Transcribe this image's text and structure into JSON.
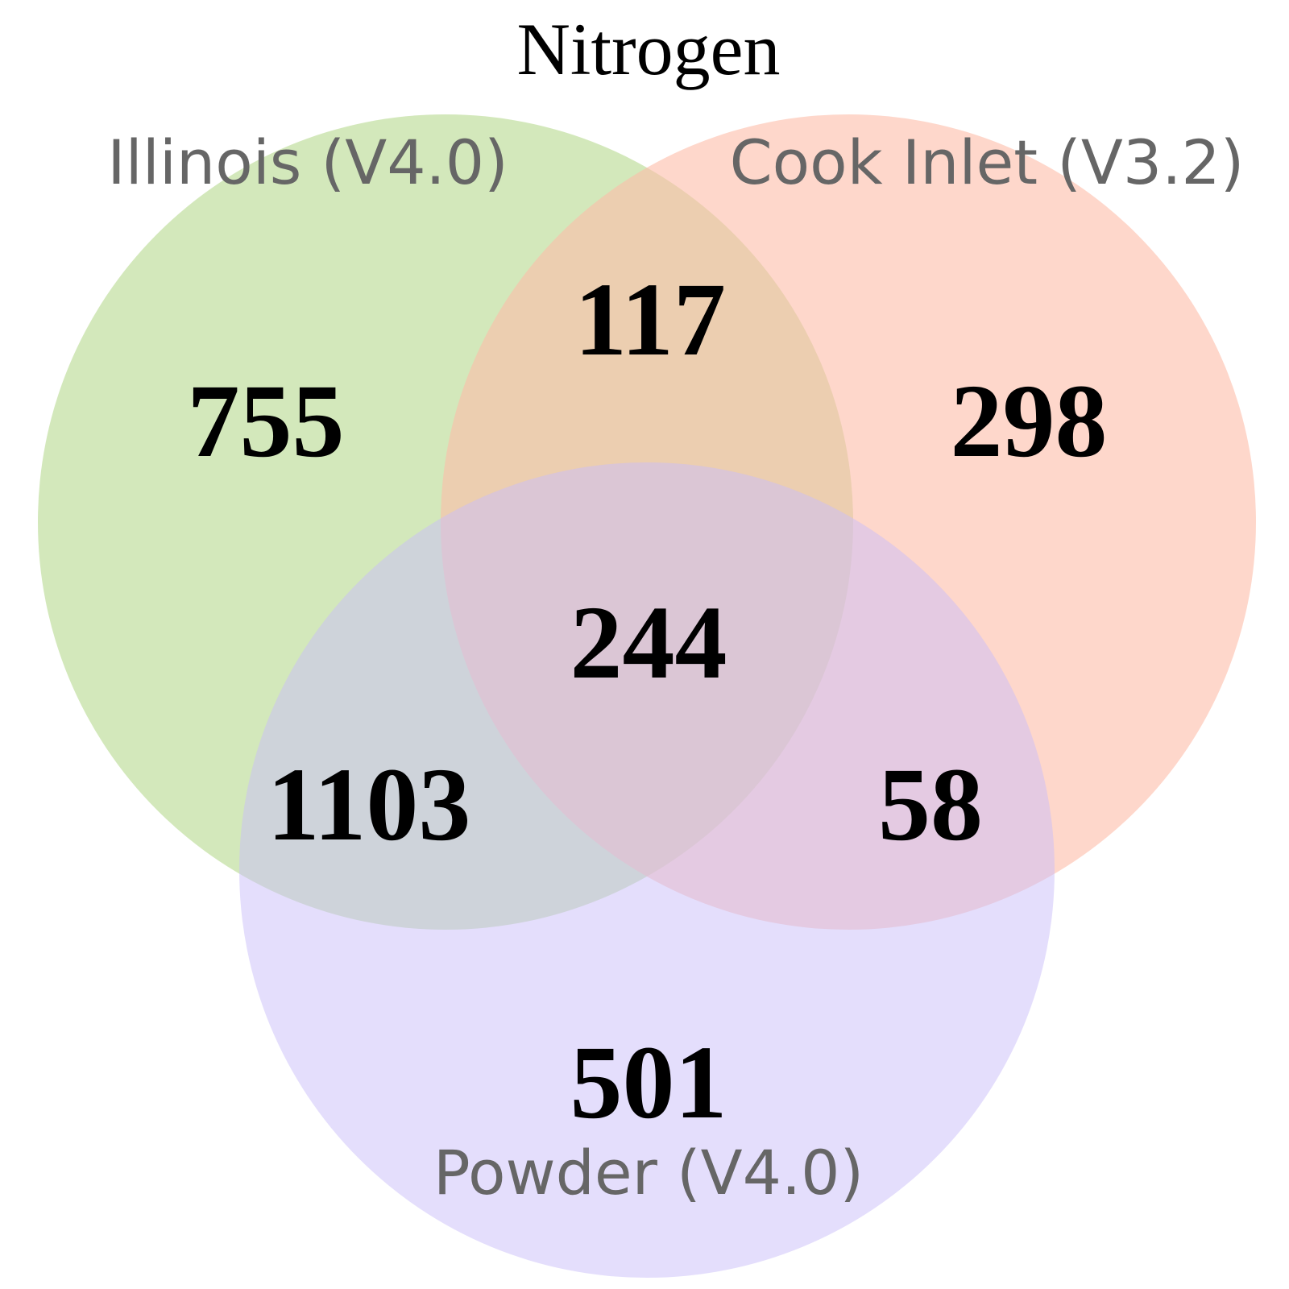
{
  "title": "Nitrogen",
  "sets": [
    {
      "id": "illinois",
      "label": "Illinois (V4.0)",
      "color": "#b5d98d"
    },
    {
      "id": "cook",
      "label": "Cook Inlet (V3.2)",
      "color": "#fdbca8"
    },
    {
      "id": "powder",
      "label": "Powder (V4.0)",
      "color": "#c9bdfa"
    }
  ],
  "regions": {
    "illinois_only": "755",
    "cook_only": "298",
    "powder_only": "501",
    "illinois_cook": "117",
    "illinois_powder": "1103",
    "cook_powder": "58",
    "all_three": "244"
  }
}
